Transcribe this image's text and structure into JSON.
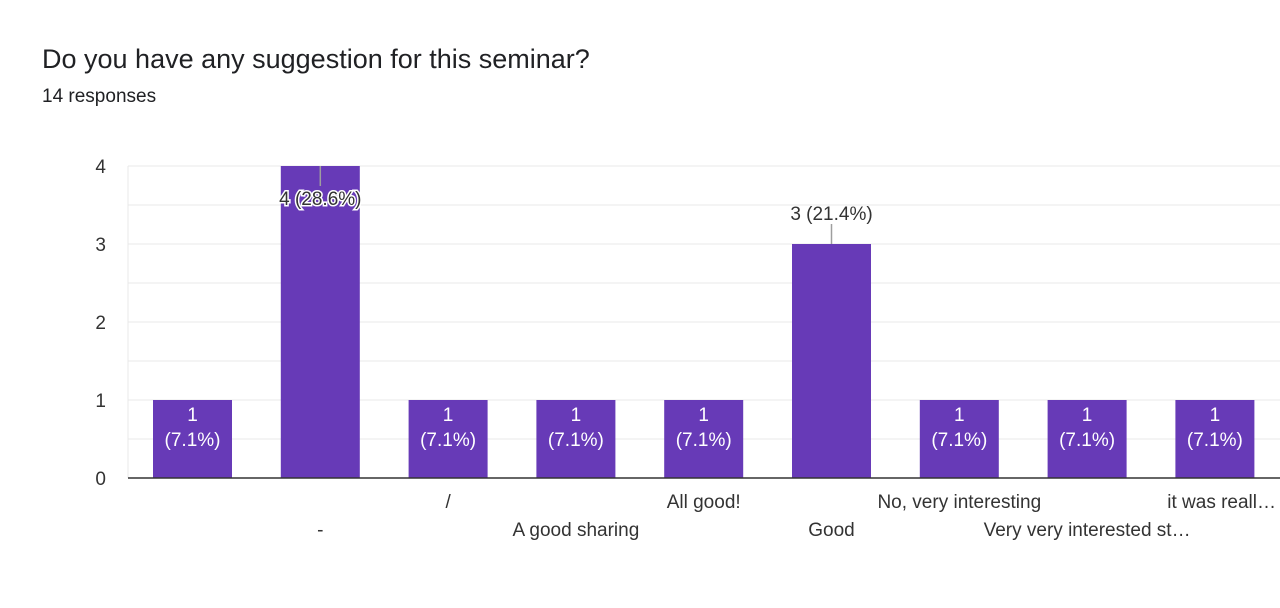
{
  "question": {
    "title": "Do you have any suggestion for this seminar?",
    "responses": "14 responses"
  },
  "colors": {
    "bar": "#673ab7",
    "grid": "#e8e8e8",
    "axis": "#333333",
    "text": "#333333",
    "inside_label": "#ffffff"
  },
  "chart_data": {
    "type": "bar",
    "title": "Do you have any suggestion for this seminar?",
    "xlabel": "",
    "ylabel": "",
    "ylim": [
      0,
      4
    ],
    "yticks": [
      "0",
      "1",
      "2",
      "3",
      "4"
    ],
    "grid": true,
    "categories": [
      "",
      "-",
      "/",
      "A good sharing",
      "All good!",
      "Good",
      "No, very interesting",
      "Very very interested st…",
      "it was reall…"
    ],
    "values": [
      1,
      4,
      1,
      1,
      1,
      3,
      1,
      1,
      1
    ],
    "data_labels": [
      [
        "1",
        "(7.1%)"
      ],
      [
        "4 (28.6%)"
      ],
      [
        "1",
        "(7.1%)"
      ],
      [
        "1",
        "(7.1%)"
      ],
      [
        "1",
        "(7.1%)"
      ],
      [
        "3 (21.4%)"
      ],
      [
        "1",
        "(7.1%)"
      ],
      [
        "1",
        "(7.1%)"
      ],
      [
        "1",
        "(7.1%)"
      ]
    ]
  }
}
